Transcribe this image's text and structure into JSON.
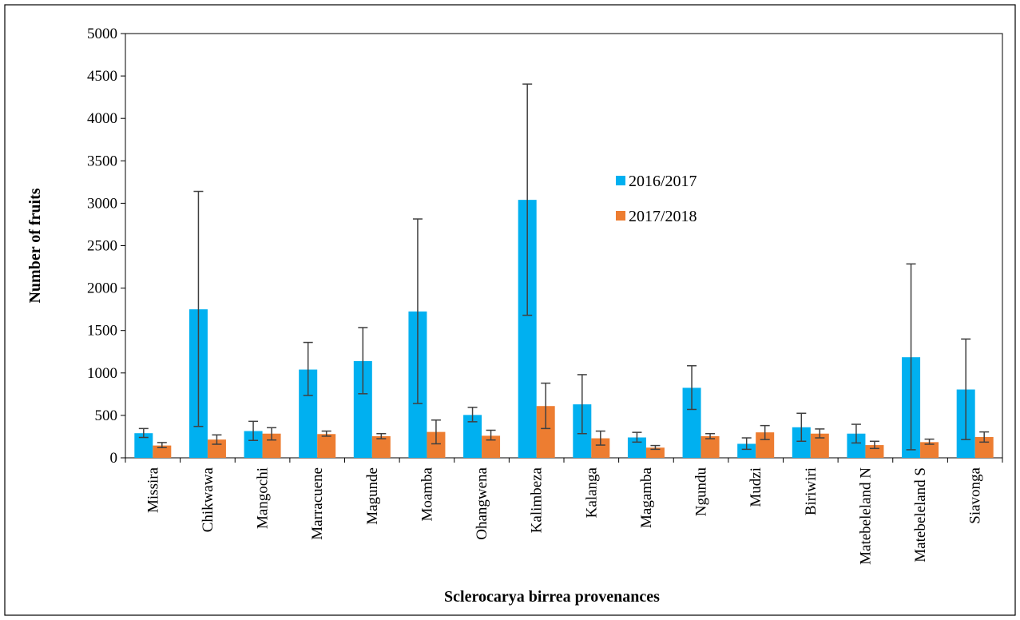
{
  "chart_data": {
    "type": "bar",
    "title": "",
    "xlabel": "Sclerocarya birrea provenances",
    "ylabel": "Number of fruits",
    "ylim": [
      0,
      5000
    ],
    "yticks": [
      0,
      500,
      1000,
      1500,
      2000,
      2500,
      3000,
      3500,
      4000,
      4500,
      5000
    ],
    "grid": false,
    "legend_position": "center",
    "categories": [
      "Missira",
      "Chikwawa",
      "Mangochi",
      "Marracuene",
      "Magunde",
      "Moamba",
      "Ohangwena",
      "Kalimbeza",
      "Kalanga",
      "Magamba",
      "Ngundu",
      "Mudzi",
      "Biriwiri",
      "Matebeleland N",
      "Matebeleland S",
      "Siavonga"
    ],
    "series": [
      {
        "name": "2016/2017",
        "color": "#00B0F0",
        "values": [
          290,
          1750,
          315,
          1040,
          1140,
          1725,
          505,
          3040,
          630,
          240,
          825,
          165,
          360,
          285,
          1185,
          805
        ],
        "error_low": [
          240,
          370,
          205,
          735,
          755,
          640,
          425,
          1680,
          285,
          185,
          570,
          100,
          195,
          175,
          95,
          215
        ],
        "error_high": [
          345,
          3140,
          430,
          1360,
          1535,
          2815,
          595,
          4405,
          980,
          300,
          1085,
          235,
          525,
          395,
          2285,
          1400
        ]
      },
      {
        "name": "2017/2018",
        "color": "#ED7D31",
        "values": [
          145,
          215,
          285,
          280,
          255,
          305,
          260,
          610,
          230,
          120,
          255,
          300,
          285,
          150,
          185,
          245
        ],
        "error_low": [
          120,
          160,
          210,
          255,
          225,
          165,
          210,
          345,
          150,
          100,
          225,
          215,
          235,
          110,
          160,
          185
        ],
        "error_high": [
          180,
          270,
          355,
          315,
          285,
          445,
          325,
          880,
          315,
          145,
          285,
          380,
          340,
          195,
          220,
          305
        ]
      }
    ]
  }
}
